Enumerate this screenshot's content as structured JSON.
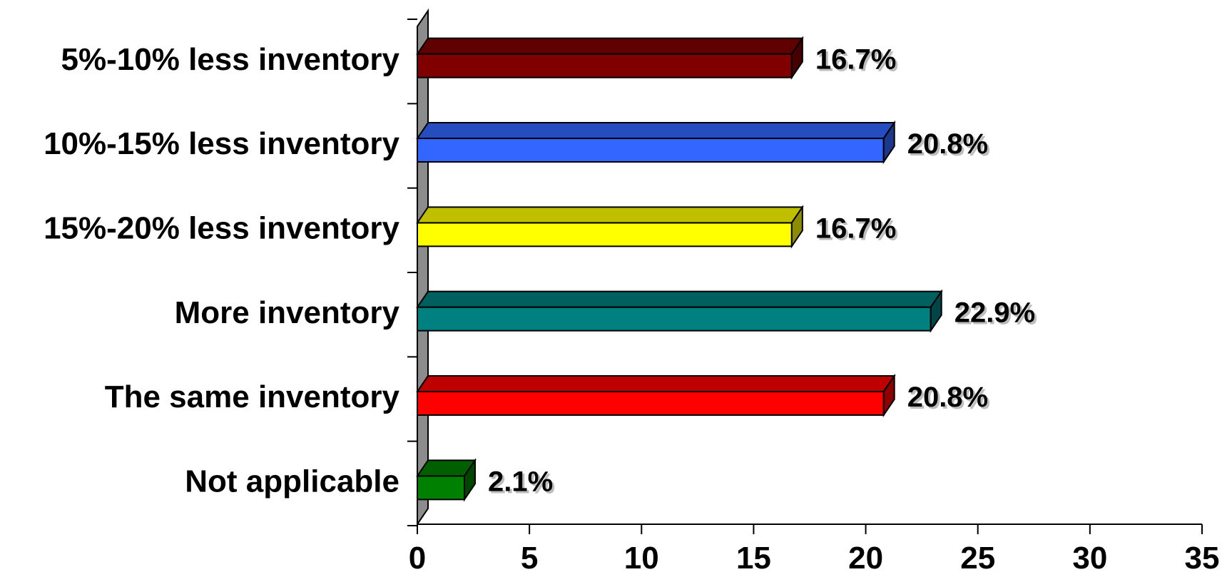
{
  "chart_data": {
    "type": "bar",
    "orientation": "horizontal",
    "three_d": true,
    "categories": [
      "5%-10% less inventory",
      "10%-15% less inventory",
      "15%-20% less inventory",
      "More inventory",
      "The same inventory",
      "Not applicable"
    ],
    "values": [
      16.7,
      20.8,
      16.7,
      22.9,
      20.8,
      2.1
    ],
    "data_labels": [
      "16.7%",
      "20.8%",
      "16.7%",
      "22.9%",
      "20.8%",
      "2.1%"
    ],
    "colors": [
      "#800000",
      "#3366FF",
      "#FFFF00",
      "#008080",
      "#FF0000",
      "#008000"
    ],
    "xlim": [
      0,
      35
    ],
    "xticks": [
      0,
      5,
      10,
      15,
      20,
      25,
      30,
      35
    ],
    "tick_labels": [
      "0",
      "5",
      "10",
      "15",
      "20",
      "25",
      "30",
      "35"
    ],
    "title": "",
    "xlabel": "",
    "ylabel": "",
    "grid": false,
    "legend": "none"
  }
}
